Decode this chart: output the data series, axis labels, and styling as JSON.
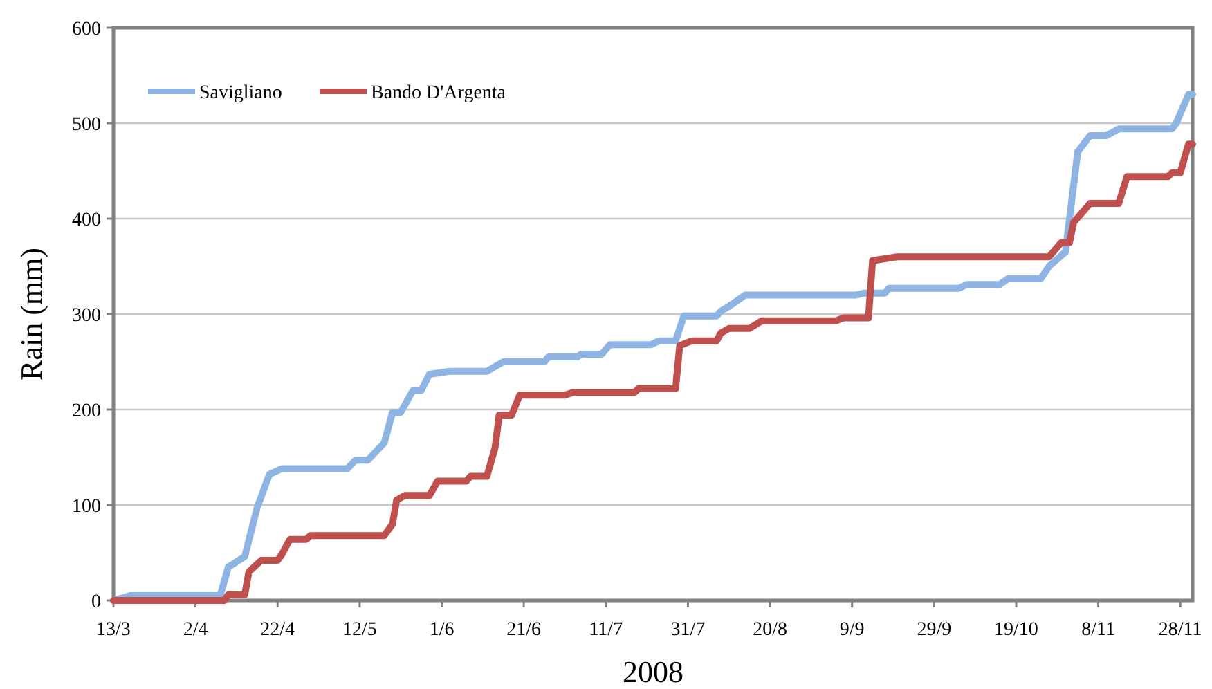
{
  "chart_data": {
    "type": "line",
    "xlabel": "2008",
    "ylabel": "Rain (mm)",
    "legend": "top left",
    "grid": "y",
    "line_style": "solid",
    "marker": "none",
    "xlim": [
      "2008-03-13",
      "2008-12-01"
    ],
    "xticks": [
      {
        "value": "2008-03-13",
        "label": "13/3"
      },
      {
        "value": "2008-04-02",
        "label": "2/4"
      },
      {
        "value": "2008-04-22",
        "label": "22/4"
      },
      {
        "value": "2008-05-12",
        "label": "12/5"
      },
      {
        "value": "2008-06-01",
        "label": "1/6"
      },
      {
        "value": "2008-06-21",
        "label": "21/6"
      },
      {
        "value": "2008-07-11",
        "label": "11/7"
      },
      {
        "value": "2008-07-31",
        "label": "31/7"
      },
      {
        "value": "2008-08-20",
        "label": "20/8"
      },
      {
        "value": "2008-09-09",
        "label": "9/9"
      },
      {
        "value": "2008-09-29",
        "label": "29/9"
      },
      {
        "value": "2008-10-19",
        "label": "19/10"
      },
      {
        "value": "2008-11-08",
        "label": "8/11"
      },
      {
        "value": "2008-11-28",
        "label": "28/11"
      }
    ],
    "ylim": [
      0,
      600
    ],
    "yticks": [
      0,
      100,
      200,
      300,
      400,
      500,
      600
    ],
    "series": [
      {
        "name": "Savigliano",
        "color": "#8db4e2",
        "x": [
          "2008-03-13",
          "2008-03-17",
          "2008-04-08",
          "2008-04-10",
          "2008-04-14",
          "2008-04-17",
          "2008-04-20",
          "2008-04-23",
          "2008-05-09",
          "2008-05-11",
          "2008-05-14",
          "2008-05-18",
          "2008-05-20",
          "2008-05-22",
          "2008-05-25",
          "2008-05-27",
          "2008-05-29",
          "2008-06-03",
          "2008-06-12",
          "2008-06-16",
          "2008-06-26",
          "2008-06-27",
          "2008-07-04",
          "2008-07-05",
          "2008-07-10",
          "2008-07-12",
          "2008-07-22",
          "2008-07-24",
          "2008-07-28",
          "2008-07-30",
          "2008-08-07",
          "2008-08-08",
          "2008-08-10",
          "2008-08-14",
          "2008-09-10",
          "2008-09-12",
          "2008-09-17",
          "2008-09-18",
          "2008-10-05",
          "2008-10-07",
          "2008-10-15",
          "2008-10-17",
          "2008-10-25",
          "2008-10-27",
          "2008-10-31",
          "2008-11-03",
          "2008-11-06",
          "2008-11-10",
          "2008-11-13",
          "2008-11-26",
          "2008-11-27",
          "2008-11-30",
          "2008-12-01"
        ],
        "values": [
          0,
          5,
          5,
          35,
          46,
          97,
          132,
          138,
          138,
          147,
          147,
          165,
          197,
          197,
          220,
          220,
          237,
          240,
          240,
          250,
          250,
          255,
          255,
          258,
          258,
          268,
          268,
          272,
          272,
          298,
          298,
          303,
          308,
          320,
          320,
          322,
          322,
          327,
          327,
          331,
          331,
          337,
          337,
          350,
          365,
          470,
          487,
          487,
          494,
          494,
          500,
          530,
          530
        ]
      },
      {
        "name": "Bando D'Argenta",
        "color": "#c0504d",
        "x": [
          "2008-03-13",
          "2008-04-09",
          "2008-04-10",
          "2008-04-14",
          "2008-04-15",
          "2008-04-18",
          "2008-04-22",
          "2008-04-23",
          "2008-04-25",
          "2008-04-29",
          "2008-04-30",
          "2008-05-18",
          "2008-05-20",
          "2008-05-21",
          "2008-05-23",
          "2008-05-29",
          "2008-05-31",
          "2008-06-07",
          "2008-06-08",
          "2008-06-12",
          "2008-06-14",
          "2008-06-15",
          "2008-06-18",
          "2008-06-20",
          "2008-07-01",
          "2008-07-03",
          "2008-07-18",
          "2008-07-19",
          "2008-07-28",
          "2008-07-29",
          "2008-08-01",
          "2008-08-07",
          "2008-08-08",
          "2008-08-10",
          "2008-08-15",
          "2008-08-18",
          "2008-09-05",
          "2008-09-07",
          "2008-09-13",
          "2008-09-14",
          "2008-09-20",
          "2008-10-27",
          "2008-10-30",
          "2008-11-01",
          "2008-11-02",
          "2008-11-06",
          "2008-11-13",
          "2008-11-15",
          "2008-11-25",
          "2008-11-26",
          "2008-11-28",
          "2008-11-30",
          "2008-12-01"
        ],
        "values": [
          0,
          0,
          6,
          6,
          30,
          42,
          42,
          48,
          64,
          64,
          68,
          68,
          80,
          105,
          110,
          110,
          125,
          125,
          130,
          130,
          160,
          194,
          194,
          215,
          215,
          218,
          218,
          222,
          222,
          267,
          272,
          272,
          280,
          285,
          285,
          293,
          293,
          296,
          296,
          356,
          360,
          360,
          375,
          375,
          396,
          416,
          416,
          444,
          444,
          448,
          448,
          478,
          478
        ]
      }
    ]
  }
}
